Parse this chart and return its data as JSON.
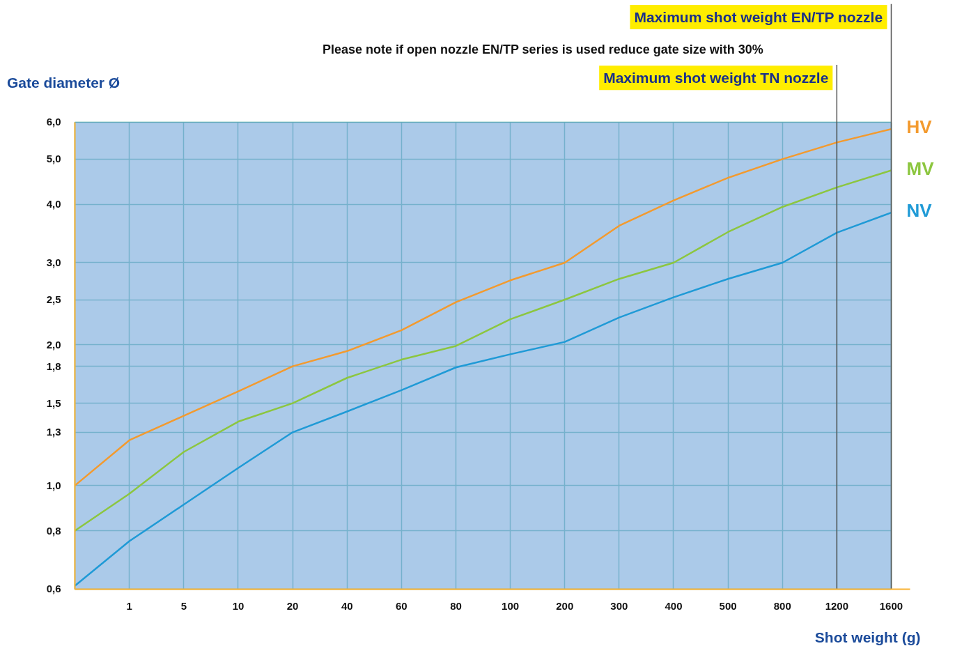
{
  "chart_data": {
    "type": "line",
    "xlabel": "Shot weight (g)",
    "ylabel": "Gate diameter Ø",
    "categories": [
      null,
      "1",
      "5",
      "10",
      "20",
      "40",
      "60",
      "80",
      "100",
      "200",
      "300",
      "400",
      "500",
      "800",
      "1200",
      "1600"
    ],
    "log": "y",
    "ylim": [
      0.6,
      6.0
    ],
    "yticks": [
      {
        "value": 0.6,
        "label": "0,6"
      },
      {
        "value": 0.8,
        "label": "0,8"
      },
      {
        "value": 1.0,
        "label": "1,0"
      },
      {
        "value": 1.3,
        "label": "1,3"
      },
      {
        "value": 1.5,
        "label": "1,5"
      },
      {
        "value": 1.8,
        "label": "1,8"
      },
      {
        "value": 2.0,
        "label": "2,0"
      },
      {
        "value": 2.5,
        "label": "2,5"
      },
      {
        "value": 3.0,
        "label": "3,0"
      },
      {
        "value": 4.0,
        "label": "4,0"
      },
      {
        "value": 5.0,
        "label": "5,0"
      },
      {
        "value": 6.0,
        "label": "6,0"
      }
    ],
    "series": [
      {
        "name": "HV",
        "color": "#f39a2e",
        "values": [
          1.0,
          1.25,
          1.41,
          1.59,
          1.8,
          1.94,
          2.15,
          2.47,
          2.75,
          3.0,
          3.6,
          4.08,
          4.56,
          5.0,
          5.43,
          5.8
        ]
      },
      {
        "name": "MV",
        "color": "#8cc63f",
        "values": [
          0.8,
          0.96,
          1.18,
          1.37,
          1.5,
          1.7,
          1.86,
          1.99,
          2.27,
          2.5,
          2.77,
          3.0,
          3.49,
          3.95,
          4.35,
          4.73
        ]
      },
      {
        "name": "NV",
        "color": "#1f9ad6",
        "values": [
          0.61,
          0.76,
          0.91,
          1.09,
          1.3,
          1.44,
          1.6,
          1.79,
          1.91,
          2.03,
          2.29,
          2.53,
          2.77,
          3.0,
          3.48,
          3.84
        ]
      }
    ],
    "ref_lines": [
      {
        "axis": "x",
        "value": "1600",
        "label": "Maximum shot weight EN/TP nozzle",
        "color": "#555555"
      },
      {
        "axis": "x",
        "value": "1200",
        "label": "Maximum shot weight TN nozzle",
        "color": "#555555"
      }
    ],
    "annotations": [
      "Please note if open nozzle EN/TP series is used reduce gate size with 30%"
    ],
    "grid": true,
    "marker": "none",
    "line_style": "solid"
  }
}
